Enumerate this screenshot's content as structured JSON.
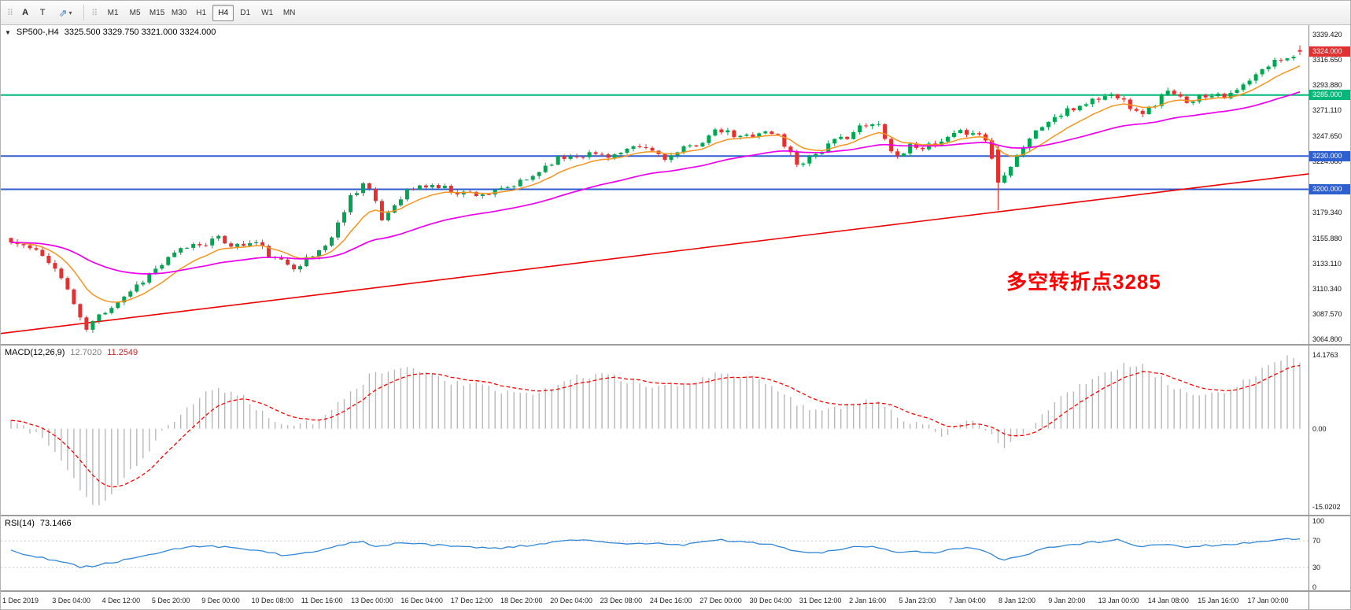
{
  "toolbar": {
    "tools": [
      {
        "label": "A"
      },
      {
        "label": "T"
      },
      {
        "glyph": "⇗",
        "dropdown": "▾"
      }
    ],
    "timeframes": [
      "M1",
      "M5",
      "M15",
      "M30",
      "H1",
      "H4",
      "D1",
      "W1",
      "MN"
    ],
    "active_timeframe": "H4"
  },
  "chart": {
    "symbol_period": "SP500-,H4",
    "ohlc": "3325.500 3329.750 3321.000 3324.000",
    "annotation": "多空转折点3285",
    "annotation_color": "#ff0000",
    "price_axis_labels": [
      "3339.420",
      "3316.650",
      "3293.880",
      "3271.110",
      "3247.650",
      "3224.880",
      "3179.340",
      "3155.880",
      "3133.110",
      "3110.340",
      "3087.570",
      "3064.800"
    ],
    "badges": [
      {
        "text": "3324.000",
        "price": 3324.0,
        "color": "#e03030",
        "name": "current-price-badge"
      },
      {
        "text": "3285.000",
        "price": 3285.0,
        "color": "#00b87a",
        "name": "green-level-badge"
      },
      {
        "text": "3230.000",
        "price": 3230.0,
        "color": "#2d5fd0",
        "name": "blue-level-badge-upper"
      },
      {
        "text": "3200.000",
        "price": 3200.0,
        "color": "#2d5fd0",
        "name": "blue-level-badge-lower"
      }
    ],
    "levels": [
      {
        "price": 3285.0,
        "color": "#00b87a",
        "width": 2
      },
      {
        "price": 3230.0,
        "color": "#2d5fd0",
        "width": 2
      },
      {
        "price": 3200.0,
        "color": "#2d5fd0",
        "width": 2
      }
    ]
  },
  "macd": {
    "name": "MACD(12,26,9)",
    "value": "12.7020",
    "signal": "11.2549",
    "axis": [
      {
        "v": 14.1763,
        "text": "14.1763"
      },
      {
        "v": 0,
        "text": "0.00"
      },
      {
        "v": -15.0202,
        "text": "-15.0202"
      }
    ]
  },
  "rsi": {
    "name": "RSI(14)",
    "value": "73.1466",
    "axis": [
      {
        "v": 100,
        "text": "100"
      },
      {
        "v": 70,
        "text": "70"
      },
      {
        "v": 30,
        "text": "30"
      },
      {
        "v": 0,
        "text": "0"
      }
    ]
  },
  "time_axis": [
    "1 Dec 2019",
    "3 Dec 04:00",
    "4 Dec 12:00",
    "5 Dec 20:00",
    "9 Dec 00:00",
    "10 Dec 08:00",
    "11 Dec 16:00",
    "13 Dec 00:00",
    "16 Dec 04:00",
    "17 Dec 12:00",
    "18 Dec 20:00",
    "20 Dec 04:00",
    "23 Dec 08:00",
    "24 Dec 16:00",
    "27 Dec 00:00",
    "30 Dec 04:00",
    "31 Dec 12:00",
    "2 Jan 16:00",
    "5 Jan 23:00",
    "7 Jan 04:00",
    "8 Jan 12:00",
    "9 Jan 20:00",
    "13 Jan 00:00",
    "14 Jan 08:00",
    "15 Jan 16:00",
    "17 Jan 00:00"
  ],
  "chart_data": {
    "type": "candlestick",
    "symbol": "SP500-",
    "timeframe": "H4",
    "bars": 206,
    "price_range": [
      3064.8,
      3339.42
    ],
    "macd_range": [
      -15.0202,
      14.1763
    ],
    "rsi_range": [
      0,
      100
    ],
    "current_ohlc": {
      "open": 3325.5,
      "high": 3329.75,
      "low": 3321.0,
      "close": 3324.0
    },
    "event_bar": {
      "f": 0.766,
      "open": 3236,
      "close": 3206,
      "low": 3181
    },
    "up_color": "#00a651",
    "down_color": "#e53030",
    "histogram_color": "#b8b8b8",
    "signal_color": "#ff0000",
    "rsi_color": "#2f86d8",
    "overlays": [
      {
        "name": "ma-fast",
        "type": "ema",
        "period": 10,
        "color": "#f7941d"
      },
      {
        "name": "ma-mid",
        "type": "ema",
        "period": 40,
        "color": "#ee00ee"
      },
      {
        "name": "ma-slow",
        "type": "trendline",
        "anchors": [
          [
            0,
            3070
          ],
          [
            1,
            3214
          ]
        ],
        "color": "#ee0000"
      }
    ],
    "price_anchors": [
      [
        0,
        3152
      ],
      [
        0.012,
        3148
      ],
      [
        0.03,
        3136
      ],
      [
        0.045,
        3108
      ],
      [
        0.057,
        3072
      ],
      [
        0.07,
        3088
      ],
      [
        0.09,
        3106
      ],
      [
        0.11,
        3126
      ],
      [
        0.135,
        3148
      ],
      [
        0.16,
        3155
      ],
      [
        0.175,
        3149
      ],
      [
        0.19,
        3152
      ],
      [
        0.205,
        3136
      ],
      [
        0.22,
        3131
      ],
      [
        0.235,
        3140
      ],
      [
        0.25,
        3158
      ],
      [
        0.262,
        3192
      ],
      [
        0.275,
        3208
      ],
      [
        0.288,
        3172
      ],
      [
        0.305,
        3198
      ],
      [
        0.325,
        3204
      ],
      [
        0.35,
        3197
      ],
      [
        0.375,
        3196
      ],
      [
        0.4,
        3208
      ],
      [
        0.42,
        3226
      ],
      [
        0.44,
        3232
      ],
      [
        0.47,
        3231
      ],
      [
        0.49,
        3238
      ],
      [
        0.51,
        3228
      ],
      [
        0.53,
        3240
      ],
      [
        0.55,
        3253
      ],
      [
        0.565,
        3246
      ],
      [
        0.58,
        3252
      ],
      [
        0.595,
        3249
      ],
      [
        0.61,
        3223
      ],
      [
        0.625,
        3233
      ],
      [
        0.64,
        3243
      ],
      [
        0.66,
        3256
      ],
      [
        0.675,
        3258
      ],
      [
        0.685,
        3228
      ],
      [
        0.7,
        3241
      ],
      [
        0.715,
        3237
      ],
      [
        0.73,
        3247
      ],
      [
        0.745,
        3254
      ],
      [
        0.757,
        3244
      ],
      [
        0.766,
        3208
      ],
      [
        0.776,
        3224
      ],
      [
        0.79,
        3246
      ],
      [
        0.805,
        3262
      ],
      [
        0.82,
        3270
      ],
      [
        0.835,
        3279
      ],
      [
        0.85,
        3284
      ],
      [
        0.862,
        3286
      ],
      [
        0.872,
        3268
      ],
      [
        0.885,
        3273
      ],
      [
        0.895,
        3288
      ],
      [
        0.91,
        3280
      ],
      [
        0.925,
        3284
      ],
      [
        0.935,
        3288
      ],
      [
        0.945,
        3283
      ],
      [
        0.955,
        3292
      ],
      [
        0.965,
        3301
      ],
      [
        0.975,
        3311
      ],
      [
        0.985,
        3318
      ],
      [
        1,
        3324
      ]
    ],
    "macd_last": 12.702,
    "macd_anchors": [
      [
        0,
        1.5
      ],
      [
        0.02,
        -1
      ],
      [
        0.04,
        -6
      ],
      [
        0.055,
        -12
      ],
      [
        0.065,
        -15
      ],
      [
        0.08,
        -12
      ],
      [
        0.1,
        -6
      ],
      [
        0.12,
        0
      ],
      [
        0.14,
        5
      ],
      [
        0.16,
        8
      ],
      [
        0.18,
        6
      ],
      [
        0.2,
        2
      ],
      [
        0.22,
        0.5
      ],
      [
        0.24,
        1.5
      ],
      [
        0.26,
        6
      ],
      [
        0.28,
        10.5
      ],
      [
        0.3,
        12
      ],
      [
        0.32,
        11
      ],
      [
        0.34,
        9
      ],
      [
        0.36,
        8.5
      ],
      [
        0.38,
        7
      ],
      [
        0.4,
        6.5
      ],
      [
        0.42,
        8
      ],
      [
        0.44,
        10
      ],
      [
        0.46,
        10.5
      ],
      [
        0.48,
        9
      ],
      [
        0.5,
        8
      ],
      [
        0.52,
        8.5
      ],
      [
        0.545,
        10.5
      ],
      [
        0.57,
        10
      ],
      [
        0.59,
        8.5
      ],
      [
        0.61,
        5
      ],
      [
        0.63,
        3
      ],
      [
        0.65,
        4.5
      ],
      [
        0.67,
        5.5
      ],
      [
        0.69,
        2
      ],
      [
        0.71,
        0.5
      ],
      [
        0.725,
        -1.5
      ],
      [
        0.74,
        1.5
      ],
      [
        0.755,
        0.5
      ],
      [
        0.77,
        -3.5
      ],
      [
        0.785,
        -1
      ],
      [
        0.8,
        3
      ],
      [
        0.82,
        7
      ],
      [
        0.84,
        10
      ],
      [
        0.86,
        12
      ],
      [
        0.875,
        12.5
      ],
      [
        0.89,
        10
      ],
      [
        0.905,
        7.5
      ],
      [
        0.92,
        6
      ],
      [
        0.935,
        6.5
      ],
      [
        0.95,
        8
      ],
      [
        0.965,
        10.5
      ],
      [
        0.98,
        13
      ],
      [
        0.99,
        14.17
      ],
      [
        1,
        12.7
      ]
    ],
    "rsi_last": 73.1466,
    "rsi_anchors": [
      [
        0,
        55
      ],
      [
        0.02,
        46
      ],
      [
        0.04,
        38
      ],
      [
        0.055,
        30
      ],
      [
        0.07,
        34
      ],
      [
        0.09,
        42
      ],
      [
        0.11,
        50
      ],
      [
        0.13,
        58
      ],
      [
        0.15,
        63
      ],
      [
        0.17,
        60
      ],
      [
        0.19,
        55
      ],
      [
        0.21,
        49
      ],
      [
        0.23,
        52
      ],
      [
        0.25,
        60
      ],
      [
        0.27,
        70
      ],
      [
        0.285,
        61
      ],
      [
        0.3,
        66
      ],
      [
        0.32,
        65
      ],
      [
        0.34,
        62
      ],
      [
        0.36,
        60
      ],
      [
        0.38,
        59
      ],
      [
        0.4,
        63
      ],
      [
        0.42,
        68
      ],
      [
        0.44,
        71
      ],
      [
        0.46,
        68
      ],
      [
        0.48,
        65
      ],
      [
        0.5,
        67
      ],
      [
        0.52,
        63
      ],
      [
        0.545,
        72
      ],
      [
        0.57,
        68
      ],
      [
        0.59,
        64
      ],
      [
        0.61,
        54
      ],
      [
        0.63,
        52
      ],
      [
        0.65,
        60
      ],
      [
        0.67,
        62
      ],
      [
        0.685,
        52
      ],
      [
        0.7,
        55
      ],
      [
        0.715,
        52
      ],
      [
        0.73,
        58
      ],
      [
        0.745,
        60
      ],
      [
        0.757,
        52
      ],
      [
        0.77,
        40
      ],
      [
        0.785,
        48
      ],
      [
        0.8,
        58
      ],
      [
        0.82,
        64
      ],
      [
        0.84,
        68
      ],
      [
        0.86,
        72
      ],
      [
        0.872,
        61
      ],
      [
        0.885,
        64
      ],
      [
        0.9,
        66
      ],
      [
        0.91,
        61
      ],
      [
        0.925,
        63
      ],
      [
        0.94,
        64
      ],
      [
        0.955,
        66
      ],
      [
        0.97,
        69
      ],
      [
        0.985,
        72
      ],
      [
        1,
        73.15
      ]
    ]
  }
}
